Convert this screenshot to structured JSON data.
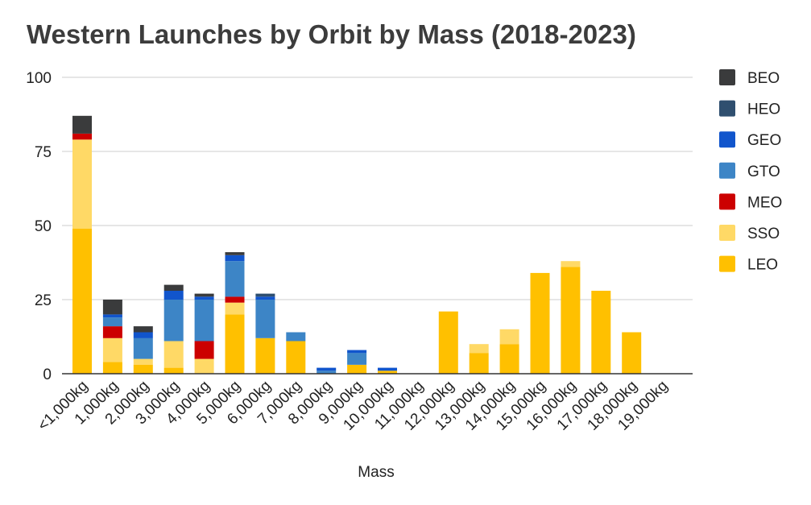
{
  "chart_data": {
    "type": "bar",
    "stacked": true,
    "title": "Western Launches by Orbit by Mass (2018-2023)",
    "xlabel": "Mass",
    "ylabel": "",
    "ylim": [
      0,
      100
    ],
    "yticks": [
      0,
      25,
      50,
      75,
      100
    ],
    "grid": true,
    "legend_position": "right",
    "categories": [
      "<1,000kg",
      "1,000kg",
      "2,000kg",
      "3,000kg",
      "4,000kg",
      "5,000kg",
      "6,000kg",
      "7,000kg",
      "8,000kg",
      "9,000kg",
      "10,000kg",
      "11,000kg",
      "12,000kg",
      "13,000kg",
      "14,000kg",
      "15,000kg",
      "16,000kg",
      "17,000kg",
      "18,000kg",
      "19,000kg"
    ],
    "series": [
      {
        "name": "LEO",
        "color": "#FFC000",
        "values": [
          49,
          4,
          3,
          2,
          0,
          20,
          12,
          11,
          0,
          3,
          1,
          0,
          21,
          7,
          10,
          34,
          36,
          28,
          14,
          0
        ]
      },
      {
        "name": "SSO",
        "color": "#FFD966",
        "values": [
          30,
          8,
          2,
          9,
          5,
          4,
          0,
          0,
          0,
          0,
          0,
          0,
          0,
          3,
          5,
          0,
          2,
          0,
          0,
          0
        ]
      },
      {
        "name": "MEO",
        "color": "#CC0000",
        "values": [
          2,
          4,
          0,
          0,
          6,
          2,
          0,
          0,
          0,
          0,
          0,
          0,
          0,
          0,
          0,
          0,
          0,
          0,
          0,
          0
        ]
      },
      {
        "name": "GTO",
        "color": "#3D85C6",
        "values": [
          0,
          3,
          7,
          14,
          14,
          12,
          13,
          3,
          1,
          4,
          0,
          0,
          0,
          0,
          0,
          0,
          0,
          0,
          0,
          0
        ]
      },
      {
        "name": "GEO",
        "color": "#1155CC",
        "values": [
          0,
          1,
          2,
          3,
          1,
          2,
          1,
          0,
          1,
          1,
          1,
          0,
          0,
          0,
          0,
          0,
          0,
          0,
          0,
          0
        ]
      },
      {
        "name": "HEO",
        "color": "#2F4F6F",
        "values": [
          0,
          0,
          0,
          0,
          0,
          0,
          1,
          0,
          0,
          0,
          0,
          0,
          0,
          0,
          0,
          0,
          0,
          0,
          0,
          0
        ]
      },
      {
        "name": "BEO",
        "color": "#3A3B3C",
        "values": [
          6,
          5,
          2,
          2,
          1,
          1,
          0,
          0,
          0,
          0,
          0,
          0,
          0,
          0,
          0,
          0,
          0,
          0,
          0,
          0
        ]
      }
    ],
    "legend_order": [
      "BEO",
      "HEO",
      "GEO",
      "GTO",
      "MEO",
      "SSO",
      "LEO"
    ]
  }
}
